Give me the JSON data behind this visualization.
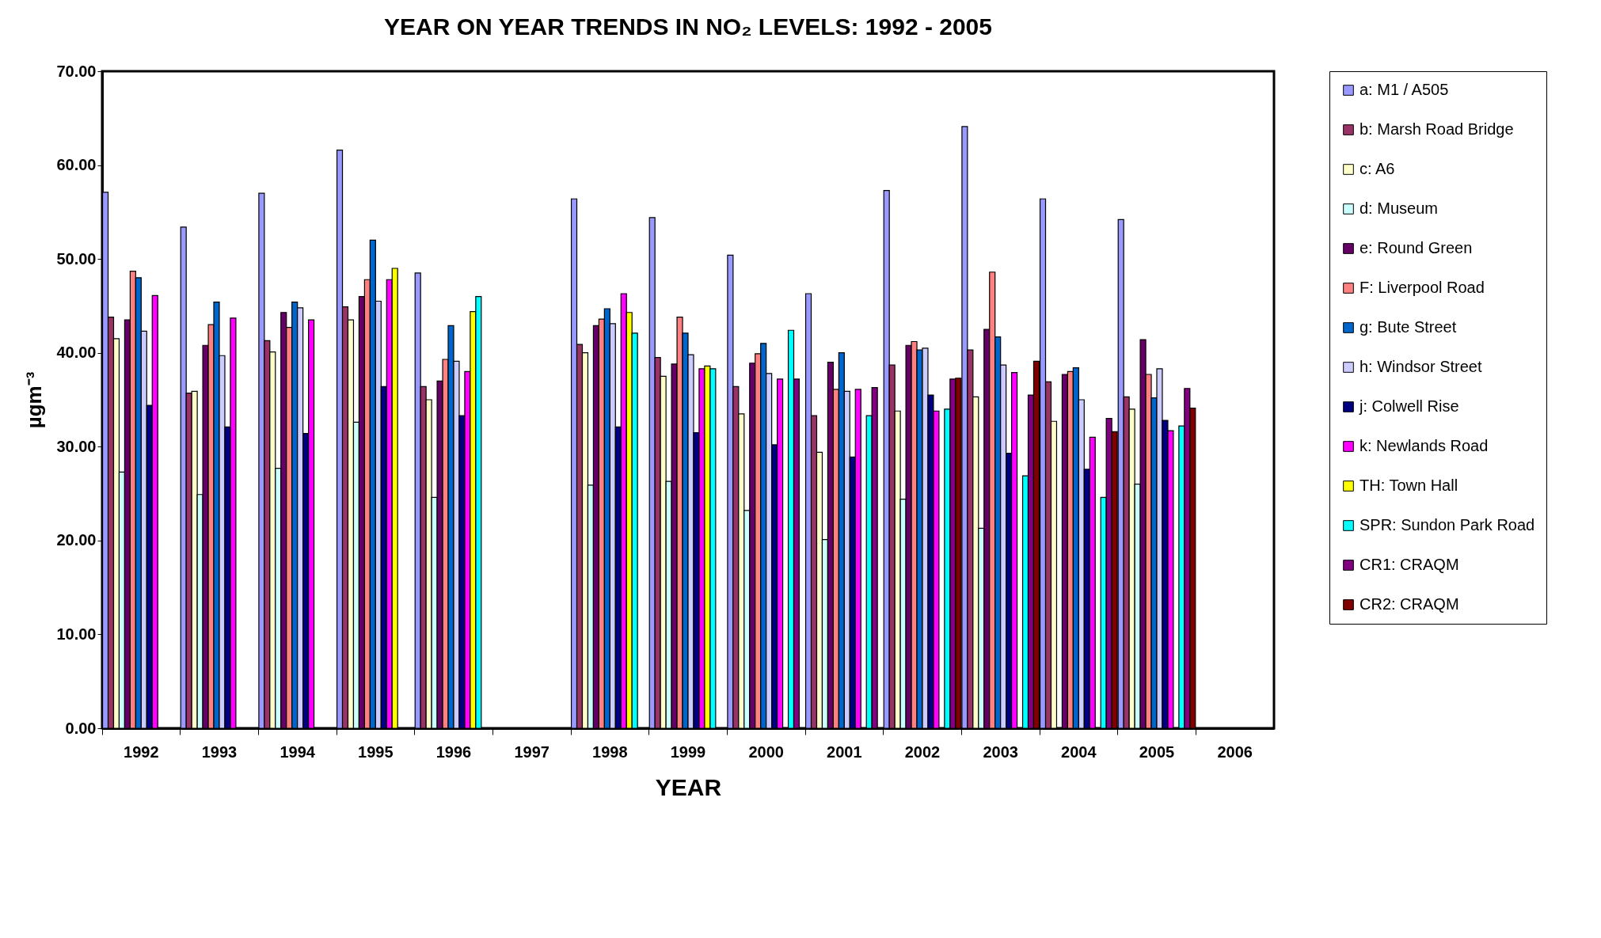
{
  "chart_data": {
    "type": "bar",
    "title": "YEAR ON YEAR TRENDS IN NO₂ LEVELS: 1992 - 2005",
    "xlabel": "YEAR",
    "ylabel": "µgm⁻³",
    "categories": [
      "1992",
      "1993",
      "1994",
      "1995",
      "1996",
      "1997",
      "1998",
      "1999",
      "2000",
      "2001",
      "2002",
      "2003",
      "2004",
      "2005",
      "2006"
    ],
    "ylim": [
      0,
      70
    ],
    "yticks": [
      {
        "value": 0,
        "label": "0.00"
      },
      {
        "value": 10,
        "label": "10.00"
      },
      {
        "value": 20,
        "label": "20.00"
      },
      {
        "value": 30,
        "label": "30.00"
      },
      {
        "value": 40,
        "label": "40.00"
      },
      {
        "value": 50,
        "label": "50.00"
      },
      {
        "value": 60,
        "label": "60.00"
      },
      {
        "value": 70,
        "label": "70.00"
      }
    ],
    "grid": false,
    "legend": "right",
    "series": [
      {
        "name": "a: M1 / A505",
        "color": "#9999ff",
        "values": [
          57.1,
          53.4,
          57.0,
          61.6,
          48.5,
          null,
          56.4,
          54.4,
          50.4,
          46.3,
          57.3,
          64.1,
          56.4,
          54.2,
          null
        ]
      },
      {
        "name": "b: Marsh Road Bridge",
        "color": "#993366",
        "values": [
          43.8,
          35.7,
          41.3,
          44.9,
          36.4,
          null,
          40.9,
          39.5,
          36.4,
          33.3,
          38.7,
          40.3,
          36.9,
          35.3,
          null
        ]
      },
      {
        "name": "c: A6",
        "color": "#ffffcc",
        "values": [
          41.5,
          35.9,
          40.1,
          43.5,
          35.0,
          null,
          40.0,
          37.5,
          33.5,
          29.4,
          33.8,
          35.3,
          32.7,
          34.0,
          null
        ]
      },
      {
        "name": "d: Museum",
        "color": "#ccffff",
        "values": [
          27.3,
          24.9,
          27.7,
          32.6,
          24.6,
          null,
          25.9,
          26.3,
          23.2,
          20.1,
          24.4,
          21.3,
          null,
          26.0,
          null
        ]
      },
      {
        "name": "e: Round Green",
        "color": "#660066",
        "values": [
          43.5,
          40.8,
          44.3,
          46.0,
          37.0,
          null,
          42.9,
          38.8,
          38.9,
          39.0,
          40.8,
          42.5,
          37.7,
          41.4,
          null
        ]
      },
      {
        "name": "F: Liverpool Road",
        "color": "#ff8080",
        "values": [
          48.7,
          43.0,
          42.7,
          47.8,
          39.3,
          null,
          43.6,
          43.8,
          39.9,
          36.1,
          41.2,
          48.6,
          38.0,
          37.7,
          null
        ]
      },
      {
        "name": "g: Bute Street",
        "color": "#0066cc",
        "values": [
          48.0,
          45.4,
          45.4,
          52.0,
          42.9,
          null,
          44.7,
          42.1,
          41.0,
          40.0,
          40.3,
          41.7,
          38.4,
          35.2,
          null
        ]
      },
      {
        "name": "h: Windsor Street",
        "color": "#ccccff",
        "values": [
          42.3,
          39.7,
          44.8,
          45.5,
          39.1,
          null,
          43.1,
          39.8,
          37.8,
          35.9,
          40.5,
          38.7,
          35.0,
          38.3,
          null
        ]
      },
      {
        "name": "j: Colwell Rise",
        "color": "#000080",
        "values": [
          34.4,
          32.1,
          31.4,
          36.4,
          33.3,
          null,
          32.1,
          31.5,
          30.2,
          28.9,
          35.5,
          29.3,
          27.6,
          32.8,
          null
        ]
      },
      {
        "name": "k: Newlands Road",
        "color": "#ff00ff",
        "values": [
          46.1,
          43.7,
          43.5,
          47.8,
          38.0,
          null,
          46.3,
          38.3,
          37.2,
          36.1,
          33.8,
          37.9,
          31.0,
          31.7,
          null
        ]
      },
      {
        "name": "TH: Town Hall",
        "color": "#ffff00",
        "values": [
          null,
          null,
          null,
          49.0,
          44.4,
          null,
          44.3,
          38.6,
          null,
          null,
          null,
          null,
          null,
          null,
          null
        ]
      },
      {
        "name": "SPR: Sundon Park Road",
        "color": "#00ffff",
        "values": [
          null,
          null,
          null,
          null,
          46.0,
          null,
          42.1,
          38.3,
          42.4,
          33.3,
          34.0,
          26.9,
          24.6,
          32.2,
          null
        ]
      },
      {
        "name": "CR1: CRAQM",
        "color": "#800080",
        "values": [
          null,
          null,
          null,
          null,
          null,
          null,
          null,
          null,
          37.2,
          36.3,
          37.2,
          35.5,
          33.0,
          36.2,
          null
        ]
      },
      {
        "name": "CR2: CRAQM",
        "color": "#800000",
        "values": [
          null,
          null,
          null,
          null,
          null,
          null,
          null,
          null,
          null,
          null,
          37.3,
          39.1,
          31.6,
          34.1,
          null
        ]
      }
    ]
  }
}
